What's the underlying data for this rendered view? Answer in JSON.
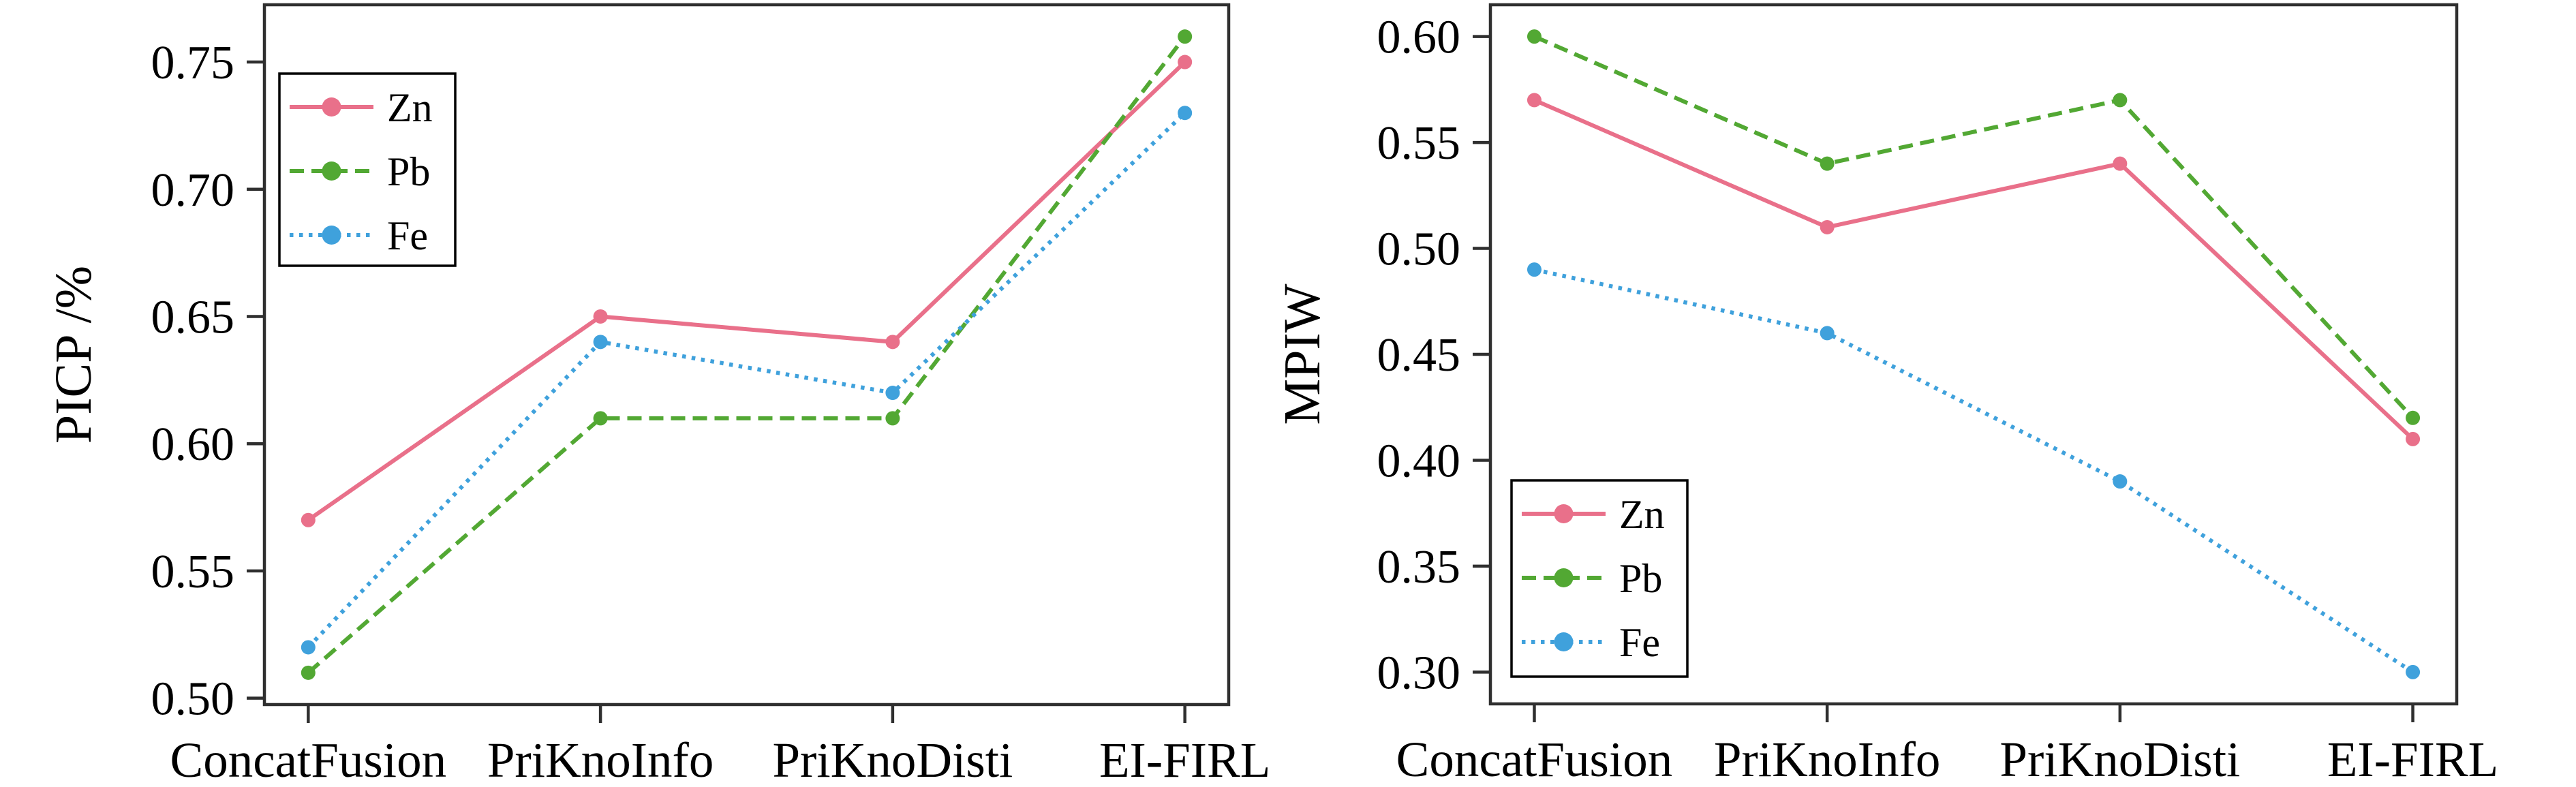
{
  "figure": {
    "background_color": "#ffffff",
    "axis_color": "#2f2f2f",
    "text_color": "#000000",
    "title": ""
  },
  "chart_data": [
    {
      "type": "line",
      "panel": "left",
      "title": "",
      "xlabel": "",
      "ylabel": "PICP /%",
      "categories": [
        "ConcatFusion",
        "PriKnoInfo",
        "PriKnoDisti",
        "EI-FIRL"
      ],
      "series": [
        {
          "name": "Zn",
          "values": [
            0.57,
            0.65,
            0.64,
            0.75
          ],
          "color": "#e9708a",
          "linestyle": "solid",
          "marker": "circle"
        },
        {
          "name": "Pb",
          "values": [
            0.51,
            0.61,
            0.61,
            0.76
          ],
          "color": "#52a833",
          "linestyle": "dashed",
          "marker": "circle"
        },
        {
          "name": "Fe",
          "values": [
            0.52,
            0.64,
            0.62,
            0.73
          ],
          "color": "#3fa1dc",
          "linestyle": "dotted",
          "marker": "circle"
        }
      ],
      "ylim": [
        0.4975,
        0.7725
      ],
      "yticks": [
        0.5,
        0.55,
        0.6,
        0.65,
        0.7,
        0.75
      ],
      "ytick_labels": [
        "0.50",
        "0.55",
        "0.60",
        "0.65",
        "0.70",
        "0.75"
      ],
      "xlim_pad": 0.15,
      "grid": false,
      "legend": {
        "position": "upper-left",
        "entries": [
          "Zn",
          "Pb",
          "Fe"
        ]
      }
    },
    {
      "type": "line",
      "panel": "right",
      "title": "",
      "xlabel": "",
      "ylabel": "MPIW",
      "categories": [
        "ConcatFusion",
        "PriKnoInfo",
        "PriKnoDisti",
        "EI-FIRL"
      ],
      "series": [
        {
          "name": "Zn",
          "values": [
            0.57,
            0.51,
            0.54,
            0.41
          ],
          "color": "#e9708a",
          "linestyle": "solid",
          "marker": "circle"
        },
        {
          "name": "Pb",
          "values": [
            0.6,
            0.54,
            0.57,
            0.42
          ],
          "color": "#52a833",
          "linestyle": "dashed",
          "marker": "circle"
        },
        {
          "name": "Fe",
          "values": [
            0.49,
            0.46,
            0.39,
            0.3
          ],
          "color": "#3fa1dc",
          "linestyle": "dotted",
          "marker": "circle"
        }
      ],
      "ylim": [
        0.285,
        0.615
      ],
      "yticks": [
        0.3,
        0.35,
        0.4,
        0.45,
        0.5,
        0.55,
        0.6
      ],
      "ytick_labels": [
        "0.30",
        "0.35",
        "0.40",
        "0.45",
        "0.50",
        "0.55",
        "0.60"
      ],
      "xlim_pad": 0.15,
      "grid": false,
      "legend": {
        "position": "lower-left",
        "entries": [
          "Zn",
          "Pb",
          "Fe"
        ]
      }
    }
  ]
}
